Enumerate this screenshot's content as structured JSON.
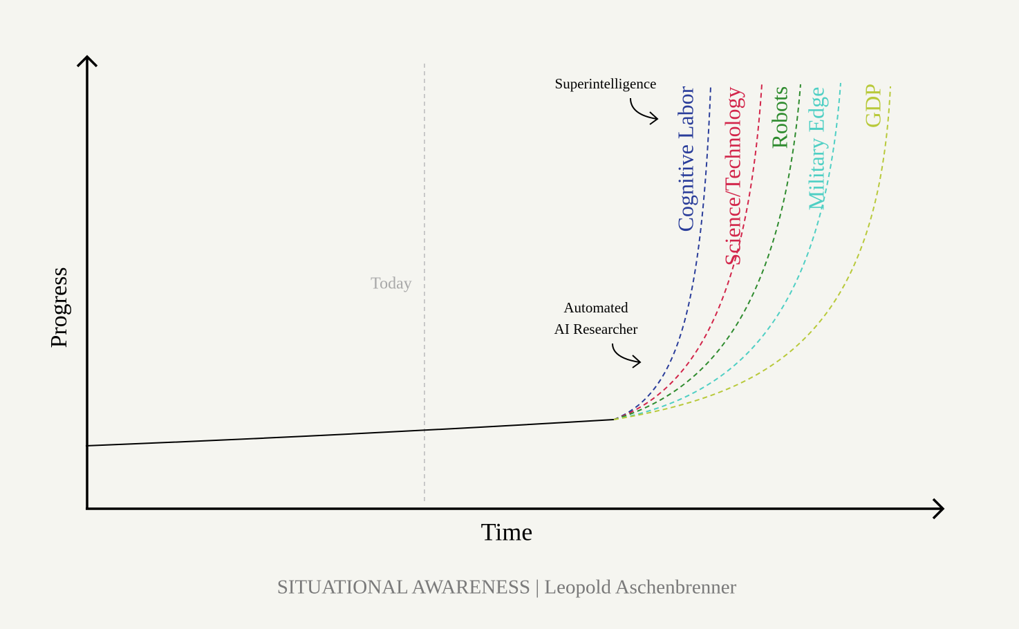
{
  "axes": {
    "y_label": "Progress",
    "x_label": "Time"
  },
  "today_label": "Today",
  "annotations": {
    "superintelligence": "Superintelligence",
    "automated_ai_researcher": [
      "Automated",
      "AI Researcher"
    ]
  },
  "curves": [
    {
      "label": "Cognitive Labor"
    },
    {
      "label": "Science/Technology"
    },
    {
      "label": "Robots"
    },
    {
      "label": "Military Edge"
    },
    {
      "label": "GDP"
    }
  ],
  "footer": "SITUATIONAL AWARENESS | Leopold Aschenbrenner"
}
